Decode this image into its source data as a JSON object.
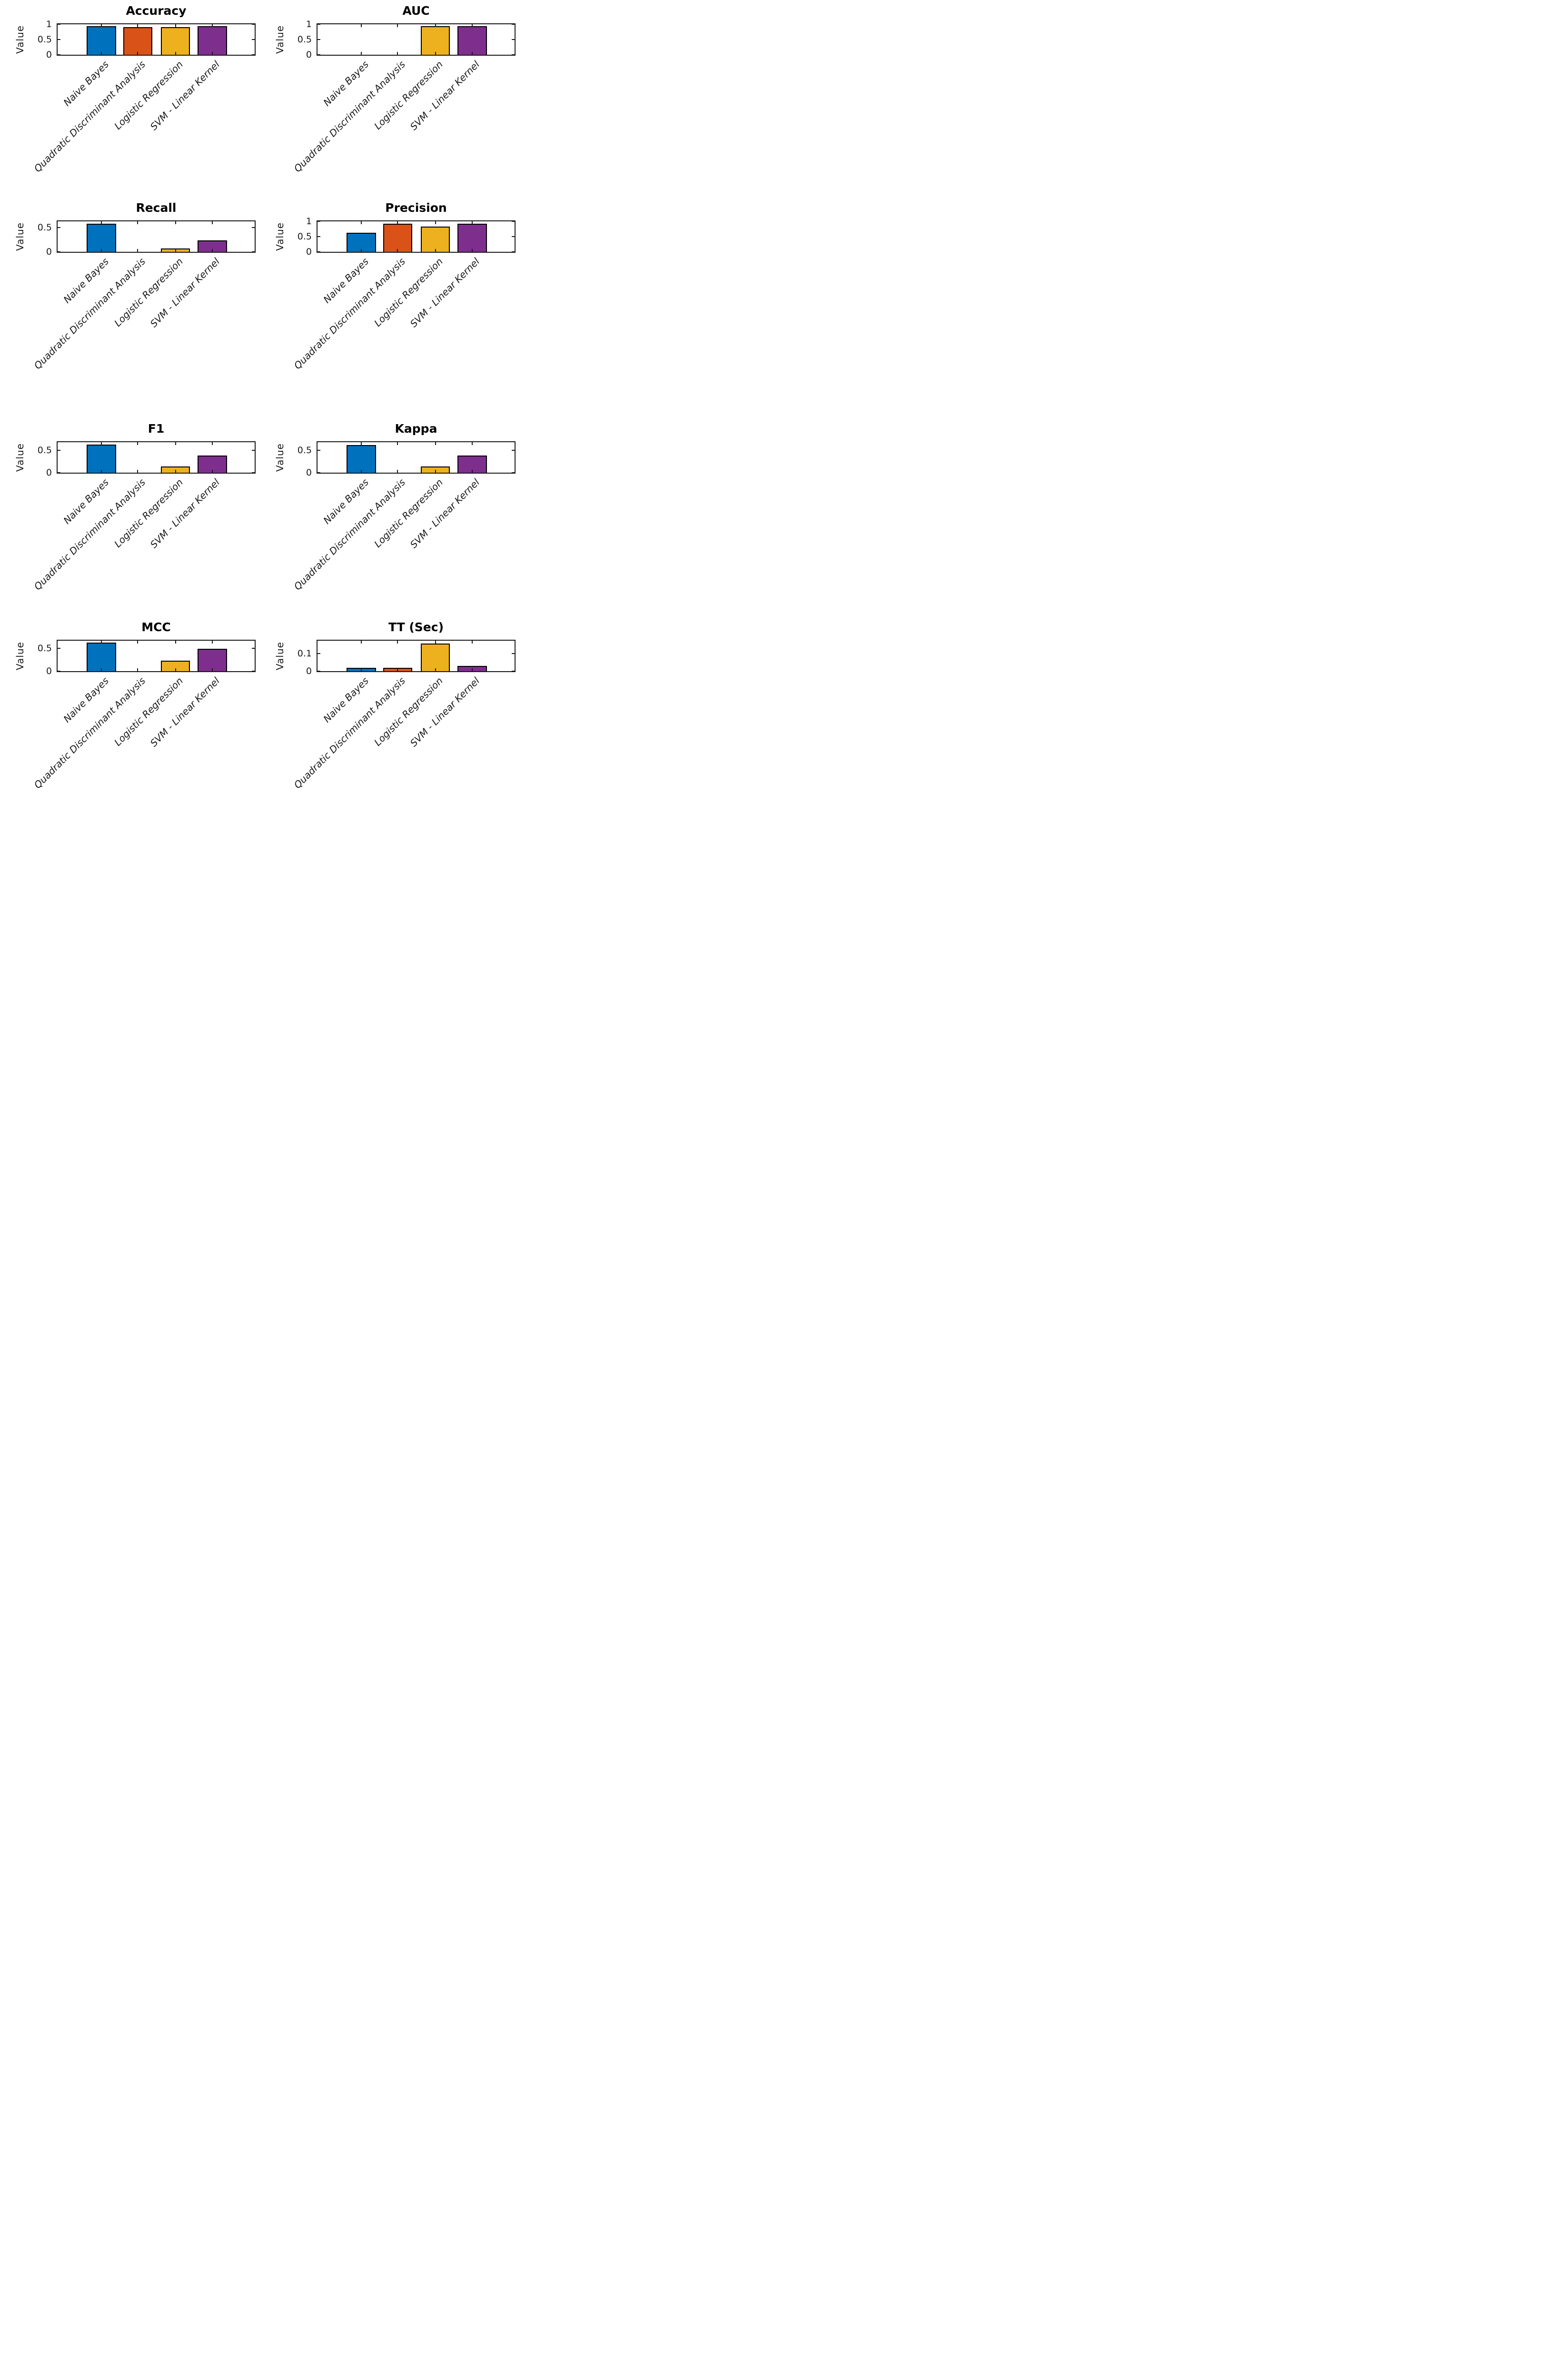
{
  "figure": {
    "ylabel": "Value",
    "categories": [
      "Naive Bayes",
      "Quadratic Discriminant Analysis",
      "Logistic Regression",
      "SVM - Linear Kernel"
    ],
    "bar_colors": [
      "#0072BD",
      "#D95319",
      "#EDB120",
      "#7E2F8E"
    ],
    "edge_color": "#000000",
    "axis_color": "#1a1a1a"
  },
  "chart_data": [
    {
      "type": "bar",
      "title": "Accuracy",
      "xlabel": "",
      "ylabel": "Value",
      "categories": [
        "Naive Bayes",
        "Quadratic Discriminant Analysis",
        "Logistic Regression",
        "SVM - Linear Kernel"
      ],
      "values": [
        0.93,
        0.91,
        0.91,
        0.93
      ],
      "yticks": [
        0,
        0.5,
        1
      ],
      "ylim": [
        0,
        1.0
      ],
      "grid": false
    },
    {
      "type": "bar",
      "title": "AUC",
      "xlabel": "",
      "ylabel": "Value",
      "categories": [
        "Naive Bayes",
        "Quadratic Discriminant Analysis",
        "Logistic Regression",
        "SVM - Linear Kernel"
      ],
      "values": [
        0,
        0,
        0.93,
        0.93
      ],
      "yticks": [
        0,
        0.5,
        1
      ],
      "ylim": [
        0,
        1.0
      ],
      "grid": false
    },
    {
      "type": "bar",
      "title": "Recall",
      "xlabel": "",
      "ylabel": "Value",
      "categories": [
        "Naive Bayes",
        "Quadratic Discriminant Analysis",
        "Logistic Regression",
        "SVM - Linear Kernel"
      ],
      "values": [
        0.58,
        0,
        0.07,
        0.24
      ],
      "yticks": [
        0,
        0.5
      ],
      "ylim": [
        0,
        0.63
      ],
      "grid": false
    },
    {
      "type": "bar",
      "title": "Precision",
      "xlabel": "",
      "ylabel": "Value",
      "categories": [
        "Naive Bayes",
        "Quadratic Discriminant Analysis",
        "Logistic Regression",
        "SVM - Linear Kernel"
      ],
      "values": [
        0.63,
        0.92,
        0.83,
        0.92
      ],
      "yticks": [
        0,
        0.5,
        1
      ],
      "ylim": [
        0,
        1.0
      ],
      "grid": false
    },
    {
      "type": "bar",
      "title": "F1",
      "xlabel": "",
      "ylabel": "Value",
      "categories": [
        "Naive Bayes",
        "Quadratic Discriminant Analysis",
        "Logistic Regression",
        "SVM - Linear Kernel"
      ],
      "values": [
        0.63,
        0,
        0.14,
        0.38
      ],
      "yticks": [
        0,
        0.5
      ],
      "ylim": [
        0,
        0.68
      ],
      "grid": false
    },
    {
      "type": "bar",
      "title": "Kappa",
      "xlabel": "",
      "ylabel": "Value",
      "categories": [
        "Naive Bayes",
        "Quadratic Discriminant Analysis",
        "Logistic Regression",
        "SVM - Linear Kernel"
      ],
      "values": [
        0.62,
        0,
        0.14,
        0.38
      ],
      "yticks": [
        0,
        0.5
      ],
      "ylim": [
        0,
        0.68
      ],
      "grid": false
    },
    {
      "type": "bar",
      "title": "MCC",
      "xlabel": "",
      "ylabel": "Value",
      "categories": [
        "Naive Bayes",
        "Quadratic Discriminant Analysis",
        "Logistic Regression",
        "SVM - Linear Kernel"
      ],
      "values": [
        0.62,
        0,
        0.23,
        0.48
      ],
      "yticks": [
        0,
        0.5
      ],
      "ylim": [
        0,
        0.66
      ],
      "grid": false
    },
    {
      "type": "bar",
      "title": "TT (Sec)",
      "xlabel": "",
      "ylabel": "Value",
      "categories": [
        "Naive Bayes",
        "Quadratic Discriminant Analysis",
        "Logistic Regression",
        "SVM - Linear Kernel"
      ],
      "values": [
        0.02,
        0.02,
        0.16,
        0.03
      ],
      "yticks": [
        0,
        0.1
      ],
      "ylim": [
        0,
        0.175
      ],
      "grid": false
    }
  ]
}
